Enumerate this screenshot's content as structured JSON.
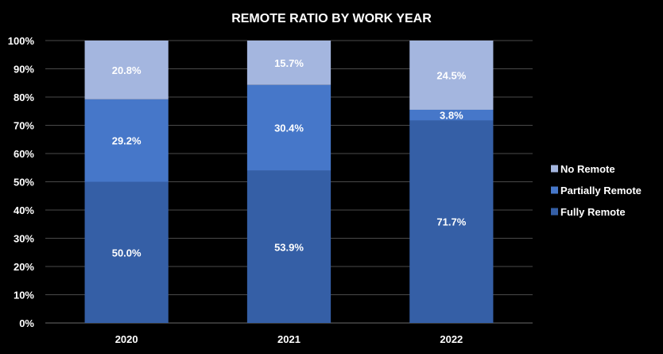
{
  "chart_data": {
    "type": "bar",
    "stacked": true,
    "title": "REMOTE RATIO BY WORK YEAR",
    "categories": [
      "2020",
      "2021",
      "2022"
    ],
    "series": [
      {
        "name": "Fully Remote",
        "values": [
          50.0,
          53.9,
          71.7
        ],
        "labels": [
          "50.0%",
          "53.9%",
          "71.7%"
        ],
        "color": "#355fa6"
      },
      {
        "name": "Partially Remote",
        "values": [
          29.2,
          30.4,
          3.8
        ],
        "labels": [
          "29.2%",
          "30.4%",
          "3.8%"
        ],
        "color": "#4677c9"
      },
      {
        "name": "No Remote",
        "values": [
          20.8,
          15.7,
          24.5
        ],
        "labels": [
          "20.8%",
          "15.7%",
          "24.5%"
        ],
        "color": "#a4b6df"
      }
    ],
    "y_ticks": [
      "0%",
      "10%",
      "20%",
      "30%",
      "40%",
      "50%",
      "60%",
      "70%",
      "80%",
      "90%",
      "100%"
    ],
    "ylim": [
      0,
      100
    ],
    "grid": true,
    "legend_position": "right",
    "legend_order": [
      "No Remote",
      "Partially Remote",
      "Fully Remote"
    ]
  }
}
